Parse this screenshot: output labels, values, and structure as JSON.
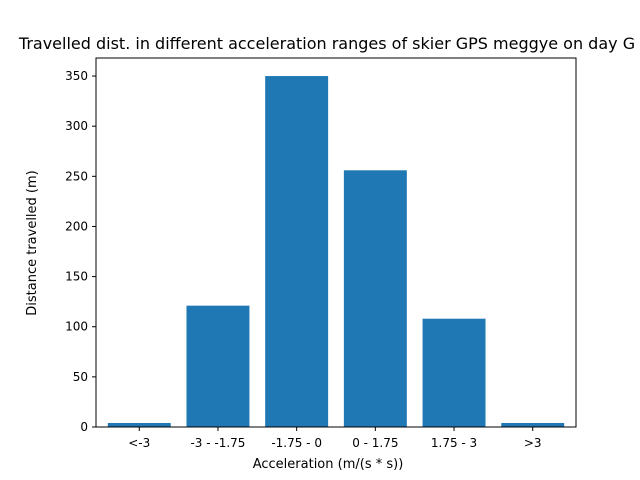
{
  "chart_data": {
    "type": "bar",
    "title": "Travelled dist. in different acceleration ranges of skier GPS meggye on day G",
    "xlabel": "Acceleration (m/(s * s))",
    "ylabel": "Distance travelled (m)",
    "categories": [
      "<-3",
      "-3 - -1.75",
      "-1.75 - 0",
      "0 - 1.75",
      "1.75 - 3",
      ">3"
    ],
    "values": [
      4,
      121,
      350,
      256,
      108,
      4
    ],
    "ylim": [
      0,
      368
    ],
    "yticks": [
      0,
      50,
      100,
      150,
      200,
      250,
      300,
      350
    ],
    "grid": false,
    "bar_color": "#1f77b4"
  }
}
